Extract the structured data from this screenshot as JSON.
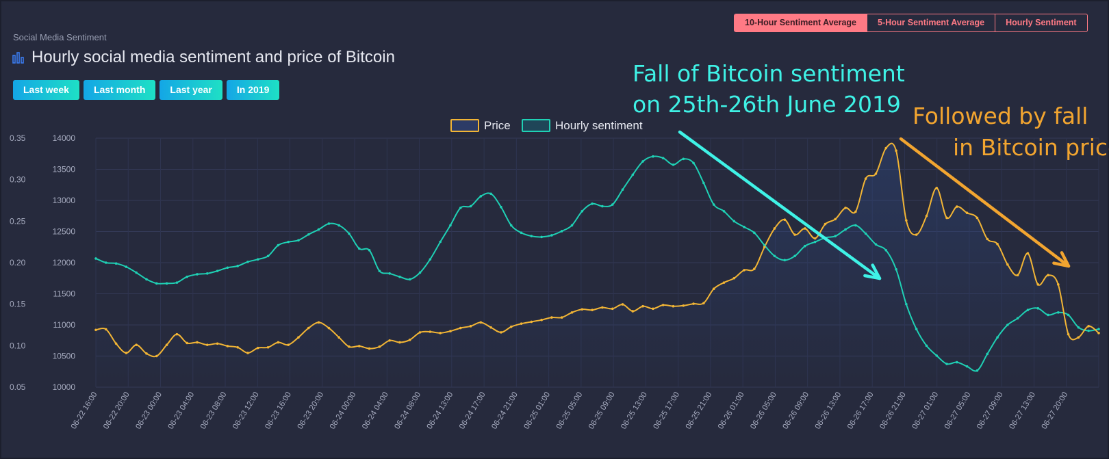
{
  "header": {
    "section_label": "Social Media Sentiment",
    "title": "Hourly social media sentiment and price of Bitcoin",
    "title_icon": "bar-chart-icon",
    "range_buttons": [
      "Last week",
      "Last month",
      "Last year",
      "In 2019"
    ],
    "tabs": [
      {
        "label": "10-Hour Sentiment Average",
        "active": true
      },
      {
        "label": "5-Hour Sentiment Average",
        "active": false
      },
      {
        "label": "Hourly Sentiment",
        "active": false
      }
    ]
  },
  "annotations": {
    "sentiment_note": [
      "Fall of Bitcoin sentiment",
      "on 25th-26th June 2019"
    ],
    "price_note": [
      "Followed by fall",
      "in Bitcoin price"
    ]
  },
  "colors": {
    "background": "#262a3d",
    "price": "#f2b535",
    "sentiment": "#1fd1b5",
    "annotation_cyan": "#3ff2e6",
    "annotation_orange": "#f2a530",
    "accent_red": "#ff7a85"
  },
  "chart_data": {
    "type": "line",
    "legend": [
      "Price",
      "Hourly sentiment"
    ],
    "legend_position": "top-center",
    "grid": true,
    "x_tick_labels": [
      "06-22 16:00",
      "06-22 20:00",
      "06-23 00:00",
      "06-23 04:00",
      "06-23 08:00",
      "06-23 12:00",
      "06-23 16:00",
      "06-23 20:00",
      "06-24 00:00",
      "06-24 04:00",
      "06-24 08:00",
      "06-24 13:00",
      "06-24 17:00",
      "06-24 21:00",
      "06-25 01:00",
      "06-25 05:00",
      "06-25 09:00",
      "06-25 13:00",
      "06-25 17:00",
      "06-25 21:00",
      "06-26 01:00",
      "06-26 05:00",
      "06-26 09:00",
      "06-26 13:00",
      "06-26 17:00",
      "06-26 21:00",
      "06-27 01:00",
      "06-27 05:00",
      "06-27 09:00",
      "06-27 13:00",
      "06-27 20:00"
    ],
    "y_price": {
      "min": 10000,
      "max": 14000,
      "ticks": [
        10000,
        10500,
        11000,
        11500,
        12000,
        12500,
        13000,
        13500,
        14000
      ]
    },
    "y_sentiment": {
      "min": 0.05,
      "max": 0.35,
      "ticks": [
        0.05,
        0.1,
        0.15,
        0.2,
        0.25,
        0.3,
        0.35
      ]
    },
    "series": [
      {
        "name": "Price",
        "axis": "price",
        "points": [
          [
            0,
            10920
          ],
          [
            1,
            10930
          ],
          [
            2,
            10700
          ],
          [
            3,
            10550
          ],
          [
            4,
            10680
          ],
          [
            5,
            10540
          ],
          [
            6,
            10500
          ],
          [
            7,
            10680
          ],
          [
            8,
            10850
          ],
          [
            9,
            10710
          ],
          [
            10,
            10720
          ],
          [
            11,
            10680
          ],
          [
            12,
            10700
          ],
          [
            13,
            10660
          ],
          [
            14,
            10640
          ],
          [
            15,
            10550
          ],
          [
            16,
            10630
          ],
          [
            17,
            10640
          ],
          [
            18,
            10720
          ],
          [
            19,
            10680
          ],
          [
            20,
            10800
          ],
          [
            21,
            10950
          ],
          [
            22,
            11040
          ],
          [
            23,
            10950
          ],
          [
            24,
            10800
          ],
          [
            25,
            10650
          ],
          [
            26,
            10660
          ],
          [
            27,
            10620
          ],
          [
            28,
            10650
          ],
          [
            29,
            10750
          ],
          [
            30,
            10720
          ],
          [
            31,
            10760
          ],
          [
            32,
            10880
          ],
          [
            33,
            10890
          ],
          [
            34,
            10870
          ],
          [
            35,
            10900
          ],
          [
            36,
            10950
          ],
          [
            37,
            10980
          ],
          [
            38,
            11040
          ],
          [
            39,
            10960
          ],
          [
            40,
            10880
          ],
          [
            41,
            10970
          ],
          [
            42,
            11020
          ],
          [
            43,
            11050
          ],
          [
            44,
            11080
          ],
          [
            45,
            11120
          ],
          [
            46,
            11120
          ],
          [
            47,
            11200
          ],
          [
            48,
            11250
          ],
          [
            49,
            11240
          ],
          [
            50,
            11280
          ],
          [
            51,
            11260
          ],
          [
            52,
            11330
          ],
          [
            53,
            11220
          ],
          [
            54,
            11300
          ],
          [
            55,
            11260
          ],
          [
            56,
            11320
          ],
          [
            57,
            11300
          ],
          [
            58,
            11310
          ],
          [
            59,
            11340
          ],
          [
            60,
            11350
          ],
          [
            61,
            11580
          ],
          [
            62,
            11680
          ],
          [
            63,
            11750
          ],
          [
            64,
            11880
          ],
          [
            65,
            11900
          ],
          [
            66,
            12250
          ],
          [
            67,
            12550
          ],
          [
            68,
            12690
          ],
          [
            69,
            12450
          ],
          [
            70,
            12550
          ],
          [
            71,
            12390
          ],
          [
            72,
            12620
          ],
          [
            73,
            12700
          ],
          [
            74,
            12880
          ],
          [
            75,
            12820
          ],
          [
            76,
            13350
          ],
          [
            77,
            13430
          ],
          [
            78,
            13840
          ],
          [
            79,
            13800
          ],
          [
            80,
            12680
          ],
          [
            81,
            12450
          ],
          [
            82,
            12750
          ],
          [
            83,
            13200
          ],
          [
            84,
            12720
          ],
          [
            85,
            12900
          ],
          [
            86,
            12800
          ],
          [
            87,
            12720
          ],
          [
            88,
            12380
          ],
          [
            89,
            12300
          ],
          [
            90,
            11970
          ],
          [
            91,
            11800
          ],
          [
            92,
            12150
          ],
          [
            93,
            11650
          ],
          [
            94,
            11800
          ],
          [
            95,
            11650
          ],
          [
            96,
            10850
          ],
          [
            97,
            10800
          ],
          [
            98,
            10980
          ],
          [
            99,
            10870
          ]
        ]
      },
      {
        "name": "Hourly sentiment",
        "axis": "sentiment",
        "points": [
          [
            0,
            0.205
          ],
          [
            1,
            0.2
          ],
          [
            2,
            0.199
          ],
          [
            3,
            0.195
          ],
          [
            4,
            0.188
          ],
          [
            5,
            0.18
          ],
          [
            6,
            0.175
          ],
          [
            7,
            0.175
          ],
          [
            8,
            0.176
          ],
          [
            9,
            0.183
          ],
          [
            10,
            0.186
          ],
          [
            11,
            0.187
          ],
          [
            12,
            0.19
          ],
          [
            13,
            0.194
          ],
          [
            14,
            0.196
          ],
          [
            15,
            0.201
          ],
          [
            16,
            0.204
          ],
          [
            17,
            0.208
          ],
          [
            18,
            0.221
          ],
          [
            19,
            0.225
          ],
          [
            20,
            0.227
          ],
          [
            21,
            0.234
          ],
          [
            22,
            0.24
          ],
          [
            23,
            0.247
          ],
          [
            24,
            0.245
          ],
          [
            25,
            0.235
          ],
          [
            26,
            0.217
          ],
          [
            27,
            0.215
          ],
          [
            28,
            0.19
          ],
          [
            29,
            0.187
          ],
          [
            30,
            0.183
          ],
          [
            31,
            0.18
          ],
          [
            32,
            0.188
          ],
          [
            33,
            0.204
          ],
          [
            34,
            0.225
          ],
          [
            35,
            0.245
          ],
          [
            36,
            0.266
          ],
          [
            37,
            0.268
          ],
          [
            38,
            0.28
          ],
          [
            39,
            0.283
          ],
          [
            40,
            0.267
          ],
          [
            41,
            0.245
          ],
          [
            42,
            0.236
          ],
          [
            43,
            0.232
          ],
          [
            44,
            0.231
          ],
          [
            45,
            0.233
          ],
          [
            46,
            0.238
          ],
          [
            47,
            0.245
          ],
          [
            48,
            0.262
          ],
          [
            49,
            0.271
          ],
          [
            50,
            0.268
          ],
          [
            51,
            0.27
          ],
          [
            52,
            0.288
          ],
          [
            53,
            0.306
          ],
          [
            54,
            0.322
          ],
          [
            55,
            0.328
          ],
          [
            56,
            0.326
          ],
          [
            57,
            0.318
          ],
          [
            58,
            0.325
          ],
          [
            59,
            0.32
          ],
          [
            60,
            0.296
          ],
          [
            61,
            0.27
          ],
          [
            62,
            0.262
          ],
          [
            63,
            0.25
          ],
          [
            64,
            0.243
          ],
          [
            65,
            0.236
          ],
          [
            66,
            0.221
          ],
          [
            67,
            0.208
          ],
          [
            68,
            0.203
          ],
          [
            69,
            0.208
          ],
          [
            70,
            0.22
          ],
          [
            71,
            0.225
          ],
          [
            72,
            0.23
          ],
          [
            73,
            0.232
          ],
          [
            74,
            0.24
          ],
          [
            75,
            0.245
          ],
          [
            76,
            0.235
          ],
          [
            77,
            0.222
          ],
          [
            78,
            0.215
          ],
          [
            79,
            0.192
          ],
          [
            80,
            0.15
          ],
          [
            81,
            0.12
          ],
          [
            82,
            0.1
          ],
          [
            83,
            0.088
          ],
          [
            84,
            0.078
          ],
          [
            85,
            0.08
          ],
          [
            86,
            0.075
          ],
          [
            87,
            0.07
          ],
          [
            88,
            0.09
          ],
          [
            89,
            0.11
          ],
          [
            90,
            0.125
          ],
          [
            91,
            0.133
          ],
          [
            92,
            0.143
          ],
          [
            93,
            0.145
          ],
          [
            94,
            0.137
          ],
          [
            95,
            0.14
          ],
          [
            96,
            0.137
          ],
          [
            97,
            0.122
          ],
          [
            98,
            0.118
          ],
          [
            99,
            0.12
          ]
        ]
      }
    ]
  }
}
